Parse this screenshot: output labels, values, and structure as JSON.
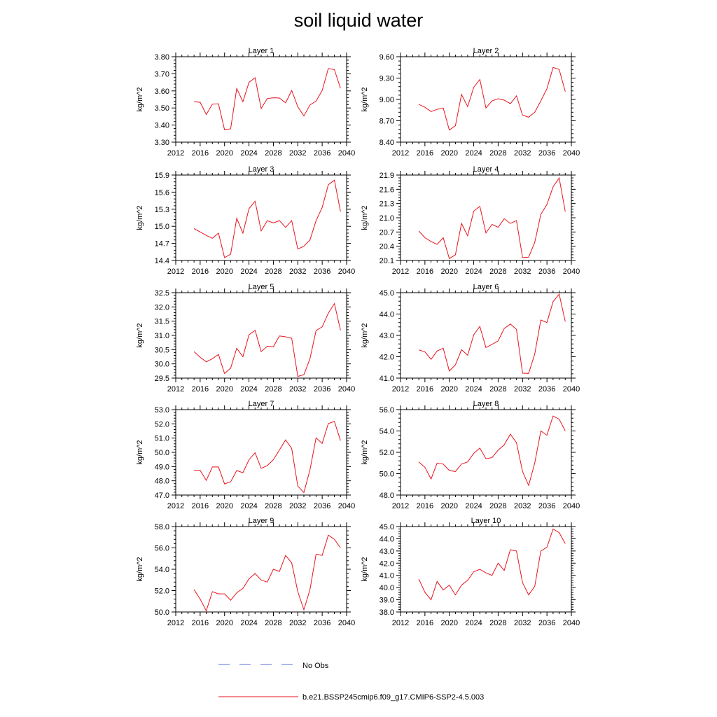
{
  "title": "soil liquid water",
  "chart_data": {
    "type": "line",
    "title": "soil liquid water",
    "ylabel": "kg/m^2",
    "x": [
      2015,
      2016,
      2017,
      2018,
      2019,
      2020,
      2021,
      2022,
      2023,
      2024,
      2025,
      2026,
      2027,
      2028,
      2029,
      2030,
      2031,
      2032,
      2033,
      2034,
      2035,
      2036,
      2037,
      2038,
      2039
    ],
    "xlim": [
      2012,
      2040
    ],
    "xticks": [
      2012,
      2016,
      2020,
      2024,
      2028,
      2032,
      2036,
      2040
    ],
    "series_name": "b.e21.BSSP245cmip6.f09_g17.CMIP6-SSP2-4.5.003",
    "panels": [
      {
        "title": "Layer 1",
        "ylim": [
          3.3,
          3.8
        ],
        "yticks": [
          "3.30",
          "3.40",
          "3.50",
          "3.60",
          "3.70",
          "3.80"
        ],
        "values": [
          3.537,
          3.533,
          3.462,
          3.522,
          3.524,
          3.372,
          3.378,
          3.614,
          3.537,
          3.65,
          3.677,
          3.497,
          3.555,
          3.56,
          3.558,
          3.53,
          3.603,
          3.507,
          3.453,
          3.518,
          3.54,
          3.602,
          3.731,
          3.724,
          3.615
        ]
      },
      {
        "title": "Layer 2",
        "ylim": [
          8.4,
          9.6
        ],
        "yticks": [
          "8.40",
          "8.70",
          "9.00",
          "9.30",
          "9.60"
        ],
        "values": [
          8.93,
          8.89,
          8.83,
          8.86,
          8.88,
          8.57,
          8.63,
          9.07,
          8.9,
          9.17,
          9.28,
          8.88,
          8.98,
          9.01,
          8.99,
          8.94,
          9.05,
          8.78,
          8.75,
          8.82,
          8.98,
          9.15,
          9.45,
          9.42,
          9.11
        ]
      },
      {
        "title": "Layer 3",
        "ylim": [
          14.4,
          15.9
        ],
        "yticks": [
          "14.4",
          "14.7",
          "15.0",
          "15.3",
          "15.6",
          "15.9"
        ],
        "values": [
          14.96,
          14.9,
          14.84,
          14.79,
          14.88,
          14.45,
          14.51,
          15.14,
          14.88,
          15.31,
          15.44,
          14.92,
          15.1,
          15.06,
          15.1,
          14.98,
          15.1,
          14.6,
          14.65,
          14.76,
          15.1,
          15.33,
          15.73,
          15.81,
          15.26
        ]
      },
      {
        "title": "Layer 4",
        "ylim": [
          20.1,
          21.9
        ],
        "yticks": [
          "20.1",
          "20.4",
          "20.7",
          "21.0",
          "21.3",
          "21.6",
          "21.9"
        ],
        "values": [
          20.72,
          20.58,
          20.5,
          20.44,
          20.58,
          20.14,
          20.22,
          20.88,
          20.62,
          21.14,
          21.24,
          20.68,
          20.86,
          20.8,
          20.98,
          20.88,
          20.94,
          20.16,
          20.17,
          20.48,
          21.07,
          21.28,
          21.65,
          21.84,
          21.13
        ]
      },
      {
        "title": "Layer 5",
        "ylim": [
          29.5,
          32.5
        ],
        "yticks": [
          "29.5",
          "30.0",
          "30.5",
          "31.0",
          "31.5",
          "32.0",
          "32.5"
        ],
        "values": [
          30.43,
          30.23,
          30.07,
          30.18,
          30.33,
          29.66,
          29.85,
          30.55,
          30.25,
          31.02,
          31.18,
          30.43,
          30.62,
          30.6,
          30.98,
          30.95,
          30.9,
          29.56,
          29.62,
          30.18,
          31.17,
          31.3,
          31.78,
          32.12,
          31.18
        ]
      },
      {
        "title": "Layer 6",
        "ylim": [
          41.0,
          45.0
        ],
        "yticks": [
          "41.0",
          "42.0",
          "43.0",
          "44.0",
          "45.0"
        ],
        "values": [
          42.32,
          42.23,
          41.88,
          42.27,
          42.4,
          41.33,
          41.62,
          42.33,
          42.07,
          43.03,
          43.42,
          42.43,
          42.58,
          42.74,
          43.32,
          43.53,
          43.28,
          41.23,
          41.22,
          42.13,
          43.72,
          43.6,
          44.58,
          44.93,
          43.65
        ]
      },
      {
        "title": "Layer 7",
        "ylim": [
          47.0,
          53.0
        ],
        "yticks": [
          "47.0",
          "48.0",
          "49.0",
          "50.0",
          "51.0",
          "52.0",
          "53.0"
        ],
        "values": [
          48.73,
          48.73,
          48.03,
          48.97,
          48.97,
          47.78,
          47.93,
          48.72,
          48.57,
          49.48,
          49.97,
          48.87,
          49.07,
          49.48,
          50.17,
          50.87,
          50.27,
          47.63,
          47.17,
          48.77,
          51.02,
          50.62,
          52.02,
          52.17,
          50.82
        ]
      },
      {
        "title": "Layer 8",
        "ylim": [
          48.0,
          56.0
        ],
        "yticks": [
          "48.0",
          "50.0",
          "52.0",
          "54.0",
          "56.0"
        ],
        "values": [
          51.1,
          50.6,
          49.5,
          51.0,
          50.9,
          50.3,
          50.2,
          50.9,
          51.1,
          51.9,
          52.4,
          51.4,
          51.5,
          52.2,
          52.7,
          53.7,
          52.9,
          50.2,
          48.9,
          51.0,
          54.0,
          53.6,
          55.4,
          55.1,
          54.0
        ]
      },
      {
        "title": "Layer 9",
        "ylim": [
          50.0,
          58.0
        ],
        "yticks": [
          "50.0",
          "52.0",
          "54.0",
          "56.0",
          "58.0"
        ],
        "values": [
          52.1,
          51.2,
          50.1,
          51.9,
          51.7,
          51.7,
          51.1,
          51.8,
          52.2,
          53.1,
          53.6,
          53.0,
          52.8,
          54.0,
          53.8,
          55.3,
          54.6,
          51.9,
          50.2,
          52.1,
          55.4,
          55.3,
          57.2,
          56.8,
          56.0
        ]
      },
      {
        "title": "Layer 10",
        "ylim": [
          38.0,
          45.0
        ],
        "yticks": [
          "38.0",
          "39.0",
          "40.0",
          "41.0",
          "42.0",
          "43.0",
          "44.0",
          "45.0"
        ],
        "values": [
          40.7,
          39.6,
          39.0,
          40.5,
          39.8,
          40.2,
          39.4,
          40.2,
          40.6,
          41.3,
          41.5,
          41.2,
          41.0,
          42.0,
          41.4,
          43.1,
          43.0,
          40.4,
          39.4,
          40.1,
          43.0,
          43.3,
          44.8,
          44.5,
          43.6
        ]
      }
    ],
    "legend": [
      {
        "label": "No Obs",
        "color": "#5a6fd6",
        "style": "dashed"
      },
      {
        "label": "b.e21.BSSP245cmip6.f09_g17.CMIP6-SSP2-4.5.003",
        "color": "#e8141e",
        "style": "solid"
      }
    ]
  }
}
